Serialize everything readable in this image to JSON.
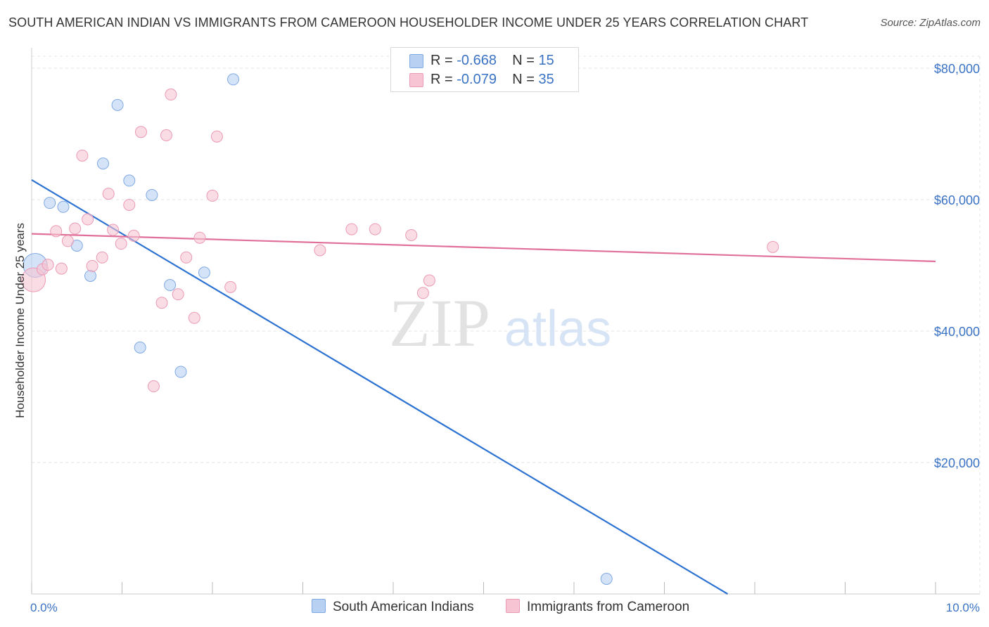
{
  "title": "SOUTH AMERICAN INDIAN VS IMMIGRANTS FROM CAMEROON HOUSEHOLDER INCOME UNDER 25 YEARS CORRELATION CHART",
  "source": "Source: ZipAtlas.com",
  "watermark": {
    "zip": "ZIP",
    "atlas": "atlas"
  },
  "legend": {
    "r_label": "R =",
    "n_label": "N =",
    "rows": [
      {
        "r": "-0.668",
        "n": "15"
      },
      {
        "r": "-0.079",
        "n": "35"
      }
    ]
  },
  "chart_data": {
    "type": "scatter",
    "title": "SOUTH AMERICAN INDIAN VS IMMIGRANTS FROM CAMEROON HOUSEHOLDER INCOME UNDER 25 YEARS CORRELATION CHART",
    "xlabel": "",
    "ylabel": "Householder Income Under 25 years",
    "xlim": [
      0,
      10
    ],
    "ylim": [
      0,
      80000
    ],
    "x_tick_labels": [
      "0.0%",
      "10.0%"
    ],
    "y_ticks": [
      20000,
      40000,
      60000,
      80000
    ],
    "y_tick_labels": [
      "$20,000",
      "$40,000",
      "$60,000",
      "$80,000"
    ],
    "grid": true,
    "series": [
      {
        "name": "South American Indians",
        "color": "#7fa9e3",
        "fill": "#b8d0f2",
        "line_color": "#2c72d2",
        "trend": {
          "x": [
            0,
            7.7
          ],
          "y": [
            63000,
            0
          ]
        },
        "points": [
          {
            "x": 0.04,
            "y": 50000,
            "big": true
          },
          {
            "x": 0.2,
            "y": 59500
          },
          {
            "x": 0.35,
            "y": 58900
          },
          {
            "x": 0.5,
            "y": 53000
          },
          {
            "x": 0.65,
            "y": 48400
          },
          {
            "x": 0.79,
            "y": 65500
          },
          {
            "x": 0.95,
            "y": 74400
          },
          {
            "x": 1.08,
            "y": 62900
          },
          {
            "x": 1.2,
            "y": 37500
          },
          {
            "x": 1.33,
            "y": 60700
          },
          {
            "x": 1.53,
            "y": 47000
          },
          {
            "x": 1.65,
            "y": 33800
          },
          {
            "x": 1.91,
            "y": 48900
          },
          {
            "x": 2.23,
            "y": 78300
          },
          {
            "x": 6.36,
            "y": 2300
          }
        ]
      },
      {
        "name": "Immigrants from Cameroon",
        "color": "#eb9ab4",
        "fill": "#f6c4d3",
        "line_color": "#e0709a",
        "trend": {
          "x": [
            0,
            10
          ],
          "y": [
            54800,
            50600
          ]
        },
        "points": [
          {
            "x": 0.02,
            "y": 47800,
            "big": true
          },
          {
            "x": 0.12,
            "y": 49400
          },
          {
            "x": 0.18,
            "y": 50100
          },
          {
            "x": 0.27,
            "y": 55200
          },
          {
            "x": 0.33,
            "y": 49500
          },
          {
            "x": 0.4,
            "y": 53700
          },
          {
            "x": 0.48,
            "y": 55600
          },
          {
            "x": 0.56,
            "y": 66700
          },
          {
            "x": 0.62,
            "y": 57000
          },
          {
            "x": 0.67,
            "y": 49900
          },
          {
            "x": 0.78,
            "y": 51200
          },
          {
            "x": 0.85,
            "y": 60900
          },
          {
            "x": 0.9,
            "y": 55400
          },
          {
            "x": 0.99,
            "y": 53300
          },
          {
            "x": 1.08,
            "y": 59200
          },
          {
            "x": 1.13,
            "y": 54500
          },
          {
            "x": 1.21,
            "y": 70300
          },
          {
            "x": 1.35,
            "y": 31600
          },
          {
            "x": 1.44,
            "y": 44300
          },
          {
            "x": 1.49,
            "y": 69800
          },
          {
            "x": 1.54,
            "y": 76000
          },
          {
            "x": 1.62,
            "y": 45600
          },
          {
            "x": 1.71,
            "y": 51200
          },
          {
            "x": 1.8,
            "y": 42000
          },
          {
            "x": 1.86,
            "y": 54200
          },
          {
            "x": 2.0,
            "y": 60600
          },
          {
            "x": 2.05,
            "y": 69600
          },
          {
            "x": 2.2,
            "y": 46700
          },
          {
            "x": 3.19,
            "y": 52300
          },
          {
            "x": 3.54,
            "y": 55500
          },
          {
            "x": 3.8,
            "y": 55500
          },
          {
            "x": 4.2,
            "y": 54600
          },
          {
            "x": 4.33,
            "y": 45800
          },
          {
            "x": 4.4,
            "y": 47700
          },
          {
            "x": 8.2,
            "y": 52800
          }
        ]
      }
    ]
  }
}
